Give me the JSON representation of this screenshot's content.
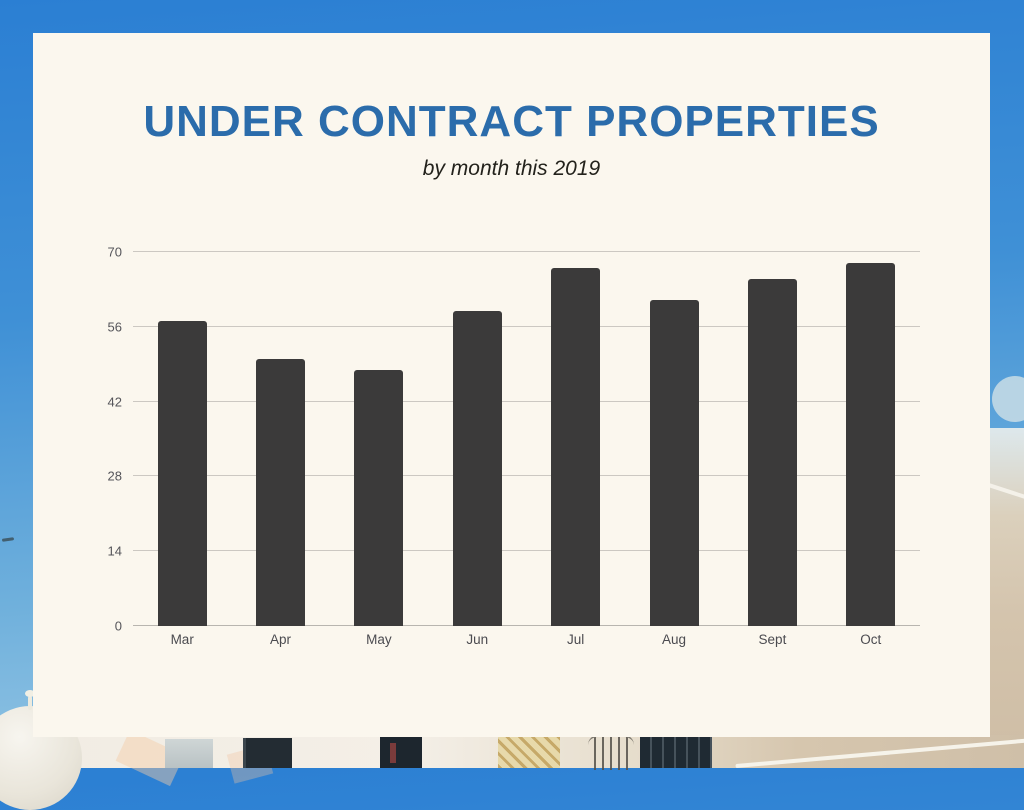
{
  "poster": {
    "title": "UNDER CONTRACT PROPERTIES",
    "subtitle": "by month this 2019"
  },
  "chart_data": {
    "type": "bar",
    "title": "UNDER CONTRACT PROPERTIES",
    "subtitle": "by month this 2019",
    "categories": [
      "Mar",
      "Apr",
      "May",
      "Jun",
      "Jul",
      "Aug",
      "Sept",
      "Oct"
    ],
    "values": [
      57,
      50,
      48,
      59,
      67,
      61,
      65,
      68
    ],
    "xlabel": "",
    "ylabel": "",
    "ylim": [
      0,
      70
    ],
    "yticks": [
      0,
      14,
      28,
      42,
      56,
      70
    ],
    "grid": true,
    "legend": false,
    "colors": {
      "bar": "#3B3A3A",
      "gridline": "#CCC8C2",
      "axis_labels": "#55555A",
      "title": "#2B6CAB",
      "subtitle_text": "#23221C",
      "card_background": "#FBF7EE",
      "sky_background": "#2B7FD3"
    }
  }
}
